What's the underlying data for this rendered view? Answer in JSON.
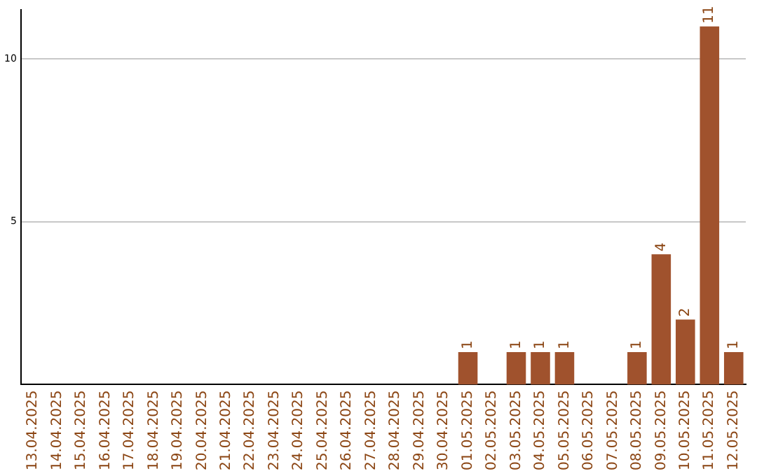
{
  "chart_data": {
    "type": "bar",
    "categories": [
      "13.04.2025",
      "14.04.2025",
      "15.04.2025",
      "16.04.2025",
      "17.04.2025",
      "18.04.2025",
      "19.04.2025",
      "20.04.2025",
      "21.04.2025",
      "22.04.2025",
      "23.04.2025",
      "24.04.2025",
      "25.04.2025",
      "26.04.2025",
      "27.04.2025",
      "28.04.2025",
      "29.04.2025",
      "30.04.2025",
      "01.05.2025",
      "02.05.2025",
      "03.05.2025",
      "04.05.2025",
      "05.05.2025",
      "06.05.2025",
      "07.05.2025",
      "08.05.2025",
      "09.05.2025",
      "10.05.2025",
      "11.05.2025",
      "12.05.2025"
    ],
    "values": [
      0,
      0,
      0,
      0,
      0,
      0,
      0,
      0,
      0,
      0,
      0,
      0,
      0,
      0,
      0,
      0,
      0,
      0,
      1,
      0,
      1,
      1,
      1,
      0,
      0,
      1,
      4,
      2,
      11,
      1
    ],
    "value_labels": [
      null,
      null,
      null,
      null,
      null,
      null,
      null,
      null,
      null,
      null,
      null,
      null,
      null,
      null,
      null,
      null,
      null,
      null,
      "1",
      null,
      "1",
      "1",
      "1",
      null,
      null,
      "1",
      "4",
      "2",
      "11",
      "1"
    ],
    "color": "#a0522d",
    "ylim": [
      0,
      11.5
    ],
    "yticks": [
      5,
      10
    ],
    "grid": "y",
    "legend": false
  }
}
